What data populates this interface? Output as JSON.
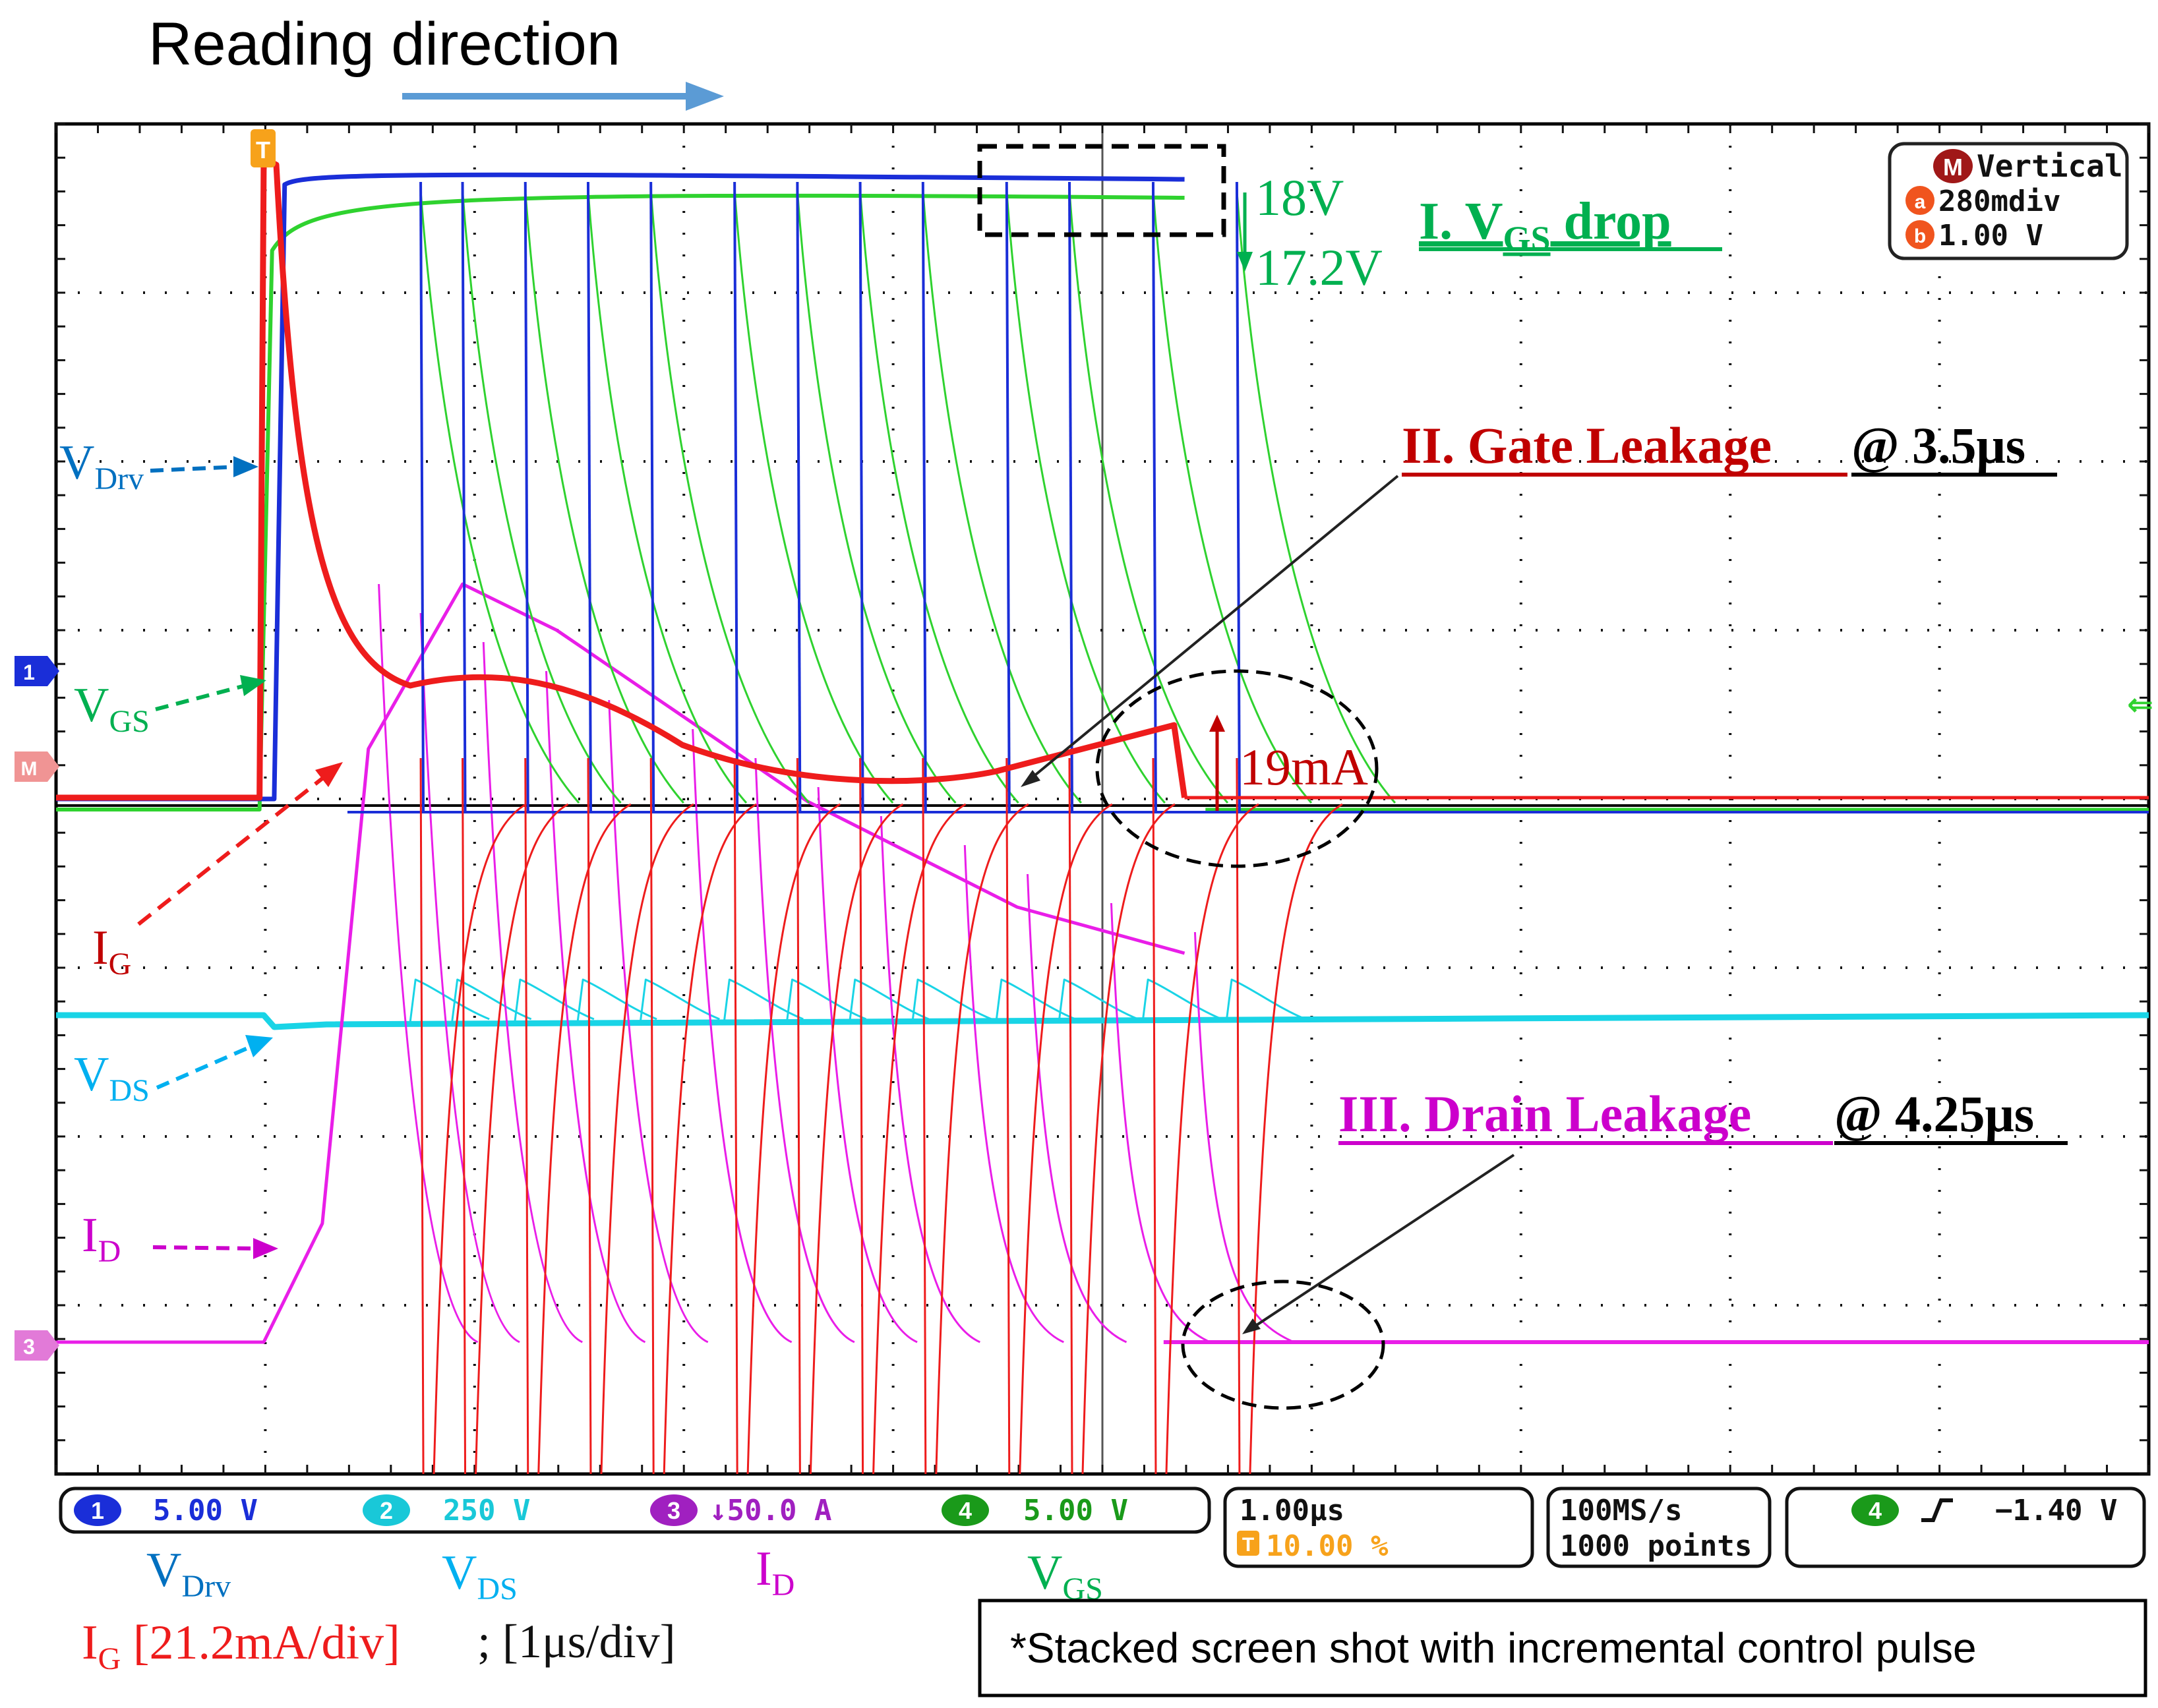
{
  "header": {
    "reading_direction": "Reading direction"
  },
  "scope_readouts": {
    "vertical_box": {
      "m_badge": "M",
      "title": "Vertical",
      "a_badge": "a",
      "a_value": "280mdiv",
      "b_badge": "b",
      "b_value": "1.00 V"
    },
    "channel_bar": [
      {
        "num": "1",
        "value": "5.00 V",
        "color": "#1a2ed8"
      },
      {
        "num": "2",
        "value": "250 V",
        "color": "#19c8d8"
      },
      {
        "num": "3",
        "value": "↓50.0 A",
        "color": "#a020c0"
      },
      {
        "num": "4",
        "value": "5.00 V",
        "color": "#1a9a1a"
      }
    ],
    "timebase": "1.00μs",
    "trigger_position": "10.00 %",
    "trigger_badge": "T",
    "sample_rate": "100MS/s",
    "record_length": "1000 points",
    "trigger_channel": "4",
    "trigger_level": "−1.40 V",
    "left_markers": [
      "1",
      "M",
      "3"
    ],
    "left_marker_3": "3"
  },
  "annotations": {
    "vgs_drop": {
      "prefix": "I. V",
      "sub": "GS",
      "suffix": " drop"
    },
    "v18": "18V",
    "v172": "17.2V",
    "gate_leakage": {
      "label": "II. Gate Leakage",
      "at": "@ 3.5μs"
    },
    "ma19": "19mA",
    "drain_leakage": {
      "label": "III.  Drain Leakage",
      "at": "@ 4.25μs"
    }
  },
  "trace_labels": {
    "vdrv": {
      "main": "V",
      "sub": "Drv"
    },
    "vgs": {
      "main": "V",
      "sub": "GS"
    },
    "ig": {
      "main": "I",
      "sub": "G"
    },
    "vds": {
      "main": "V",
      "sub": "DS"
    },
    "id": {
      "main": "I",
      "sub": "D"
    }
  },
  "bottom_legend": {
    "vdrv": {
      "main": "V",
      "sub": "Drv"
    },
    "vds": {
      "main": "V",
      "sub": "DS"
    },
    "id": {
      "main": "I",
      "sub": "D"
    },
    "vgs": {
      "main": "V",
      "sub": "GS"
    },
    "ig": {
      "main": "I",
      "sub": "G",
      "scale": " [21.2mA/div]"
    },
    "time_scale": "; [1μs/div]"
  },
  "footnote": "*Stacked screen shot with incremental control pulse",
  "colors": {
    "vdrv": "#1a2ed8",
    "vgs": "#2fd22f",
    "ig": "#ee1c1c",
    "vds": "#19d4e6",
    "id": "#e91ee8",
    "annot_green": "#00b050",
    "annot_red": "#c00000",
    "annot_magenta": "#cc00cc",
    "label_blue": "#0070c0",
    "label_cyan": "#00b0f0",
    "arrow_blue": "#5b9bd5"
  },
  "chart_data": {
    "type": "line",
    "title": "",
    "xlabel": "",
    "ylabel": "",
    "x_unit": "μs",
    "x_per_div": 1.0,
    "x_range": [
      -1,
      9
    ],
    "grid": true,
    "note": "Stacked oscilloscope captures; 13 pulses of incremental width",
    "pulse_widths_us": [
      0.4,
      0.6,
      0.9,
      1.2,
      1.5,
      1.9,
      2.2,
      2.5,
      2.8,
      3.2,
      3.5,
      3.9,
      4.3
    ],
    "series": [
      {
        "name": "VDrv",
        "channel": 1,
        "scale": "5.00 V/div"
      },
      {
        "name": "VDS",
        "channel": 2,
        "scale": "250 V/div"
      },
      {
        "name": "ID",
        "channel": 3,
        "scale": "50.0 A/div"
      },
      {
        "name": "VGS",
        "channel": 4,
        "scale": "5.00 V/div"
      },
      {
        "name": "IG",
        "channel": "M",
        "scale": "21.2mA/div"
      }
    ],
    "vgs_on_start_V": 18,
    "vgs_on_end_V": 17.2,
    "gate_leakage_time_us": 3.5,
    "gate_leakage_current_mA": 19,
    "drain_leakage_time_us": 4.25
  }
}
